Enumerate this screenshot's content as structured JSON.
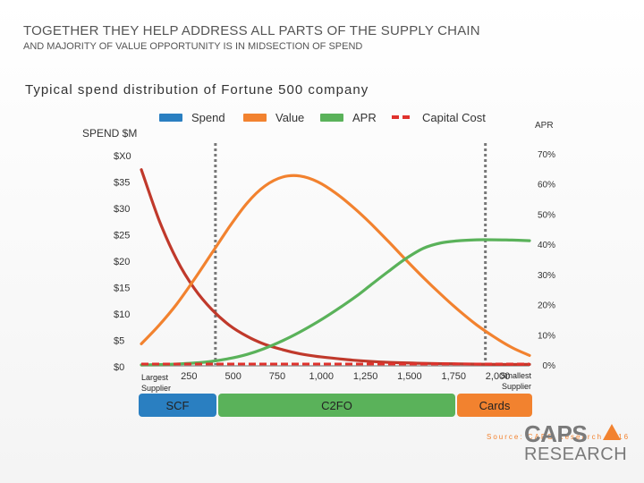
{
  "header": {
    "title": "TOGETHER THEY HELP ADDRESS ALL PARTS OF THE SUPPLY CHAIN",
    "subtitle": "AND MAJORITY OF VALUE OPPORTUNITY IS IN MIDSECTION OF SPEND"
  },
  "colors": {
    "spend": "#c0392b",
    "spend_legend": "#2a7fc1",
    "value": "#f2822f",
    "apr": "#5ab25a",
    "capital_cost": "#e0322d",
    "divider": "#777777",
    "scf": "#2a7fc1",
    "c2fo": "#5ab25a",
    "cards": "#f2822f"
  },
  "chart_data": {
    "type": "line",
    "title": "Typical spend distribution of Fortune 500 company",
    "ylabel": "SPEND $M",
    "y2label": "APR",
    "legend": [
      "Spend",
      "Value",
      "APR",
      "Capital Cost"
    ],
    "legend_placement": "top",
    "y_ticks": [
      "$X0",
      "$35",
      "$30",
      "$25",
      "$20",
      "$15",
      "$10",
      "$5",
      "$0"
    ],
    "y2_ticks": [
      "70%",
      "60%",
      "50%",
      "40%",
      "30%",
      "20%",
      "10%",
      "0%"
    ],
    "x_ticks": [
      "250",
      "500",
      "750",
      "1,000",
      "1,250",
      "1,500",
      "1,750",
      "2,000"
    ],
    "x_left_label": [
      "Largest",
      "Supplier"
    ],
    "x_right_label": [
      "Smallest",
      "Supplier"
    ],
    "ylim": [
      0,
      40
    ],
    "y2lim": [
      0,
      70
    ],
    "xlim": [
      0,
      2200
    ],
    "dividers_x": [
      420,
      1950
    ],
    "series": [
      {
        "name": "Spend",
        "axis": "y",
        "x": [
          0,
          100,
          200,
          300,
          400,
          500,
          600,
          700,
          800,
          900,
          1000,
          1200,
          1400,
          1600,
          1800,
          2000,
          2200
        ],
        "y": [
          37,
          27.5,
          20,
          14.5,
          10.5,
          7.5,
          5.4,
          3.9,
          2.9,
          2.1,
          1.6,
          0.9,
          0.5,
          0.3,
          0.2,
          0.1,
          0.1
        ]
      },
      {
        "name": "Value",
        "axis": "y",
        "x": [
          0,
          100,
          200,
          300,
          400,
          500,
          600,
          700,
          800,
          900,
          1000,
          1100,
          1200,
          1300,
          1400,
          1500,
          1600,
          1700,
          1800,
          1900,
          2000,
          2100,
          2200
        ],
        "y": [
          4,
          7.5,
          11.5,
          16.2,
          21.2,
          26.2,
          30.7,
          33.9,
          35.6,
          35.8,
          34.7,
          32.6,
          29.9,
          26.8,
          23.4,
          19.9,
          16.5,
          13.3,
          10.3,
          7.6,
          5.3,
          3.3,
          1.8
        ]
      },
      {
        "name": "APR",
        "axis": "y2",
        "x": [
          0,
          200,
          400,
          600,
          800,
          1000,
          1200,
          1300,
          1400,
          1500,
          1600,
          1700,
          1800,
          1900,
          2000,
          2100,
          2200
        ],
        "y": [
          0,
          0.3,
          1.2,
          3.5,
          8,
          14.3,
          22,
          26.5,
          31,
          35.3,
          38.7,
          40.5,
          41.2,
          41.5,
          41.5,
          41.4,
          41.2
        ]
      },
      {
        "name": "Capital Cost",
        "axis": "y2",
        "x": [
          0,
          2200
        ],
        "y": [
          0,
          0
        ]
      }
    ]
  },
  "solutions": [
    {
      "label": "SCF",
      "color_key": "scf"
    },
    {
      "label": "C2FO",
      "color_key": "c2fo"
    },
    {
      "label": "Cards",
      "color_key": "cards"
    }
  ],
  "logo": {
    "top": "CAPS",
    "bottom": "RESEARCH"
  },
  "source": "Source: CAPS Research 2016"
}
